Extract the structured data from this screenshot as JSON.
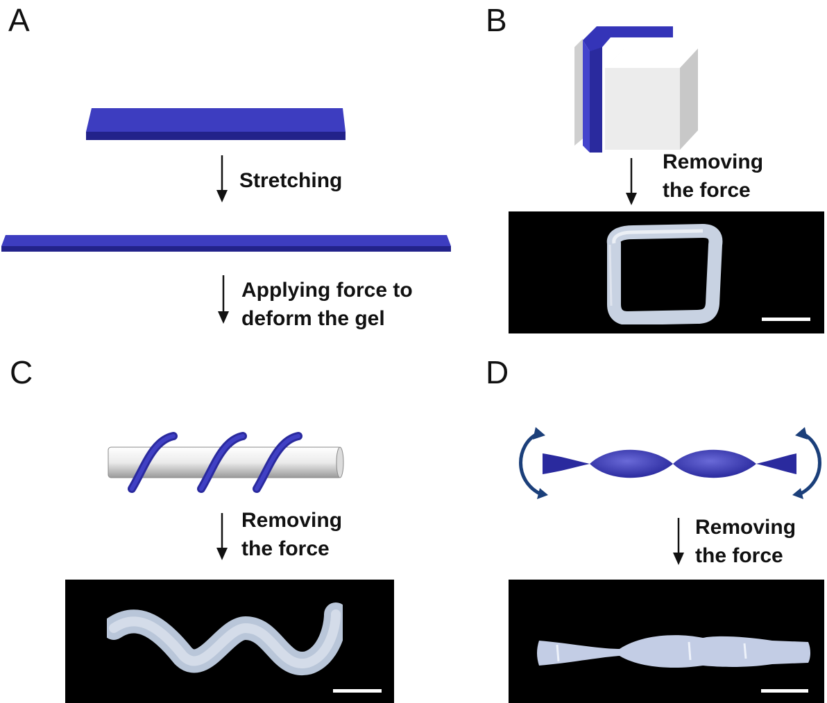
{
  "panels": {
    "a": {
      "label": "A",
      "step1": "Stretching",
      "step2_line1": "Applying force to",
      "step2_line2": "deform the gel"
    },
    "b": {
      "label": "B",
      "cap_line1": "Removing",
      "cap_line2": "the force"
    },
    "c": {
      "label": "C",
      "cap_line1": "Removing",
      "cap_line2": "the force"
    },
    "d": {
      "label": "D",
      "cap_line1": "Removing",
      "cap_line2": "the force"
    }
  },
  "colors": {
    "gel_blue": "#3333b3",
    "gel_blue_dark": "#22228a",
    "photo_background": "#000000",
    "gel_photo": "#c9d3e6",
    "rod": "#e8e8e8",
    "twist_arrow": "#1b3f7a"
  }
}
